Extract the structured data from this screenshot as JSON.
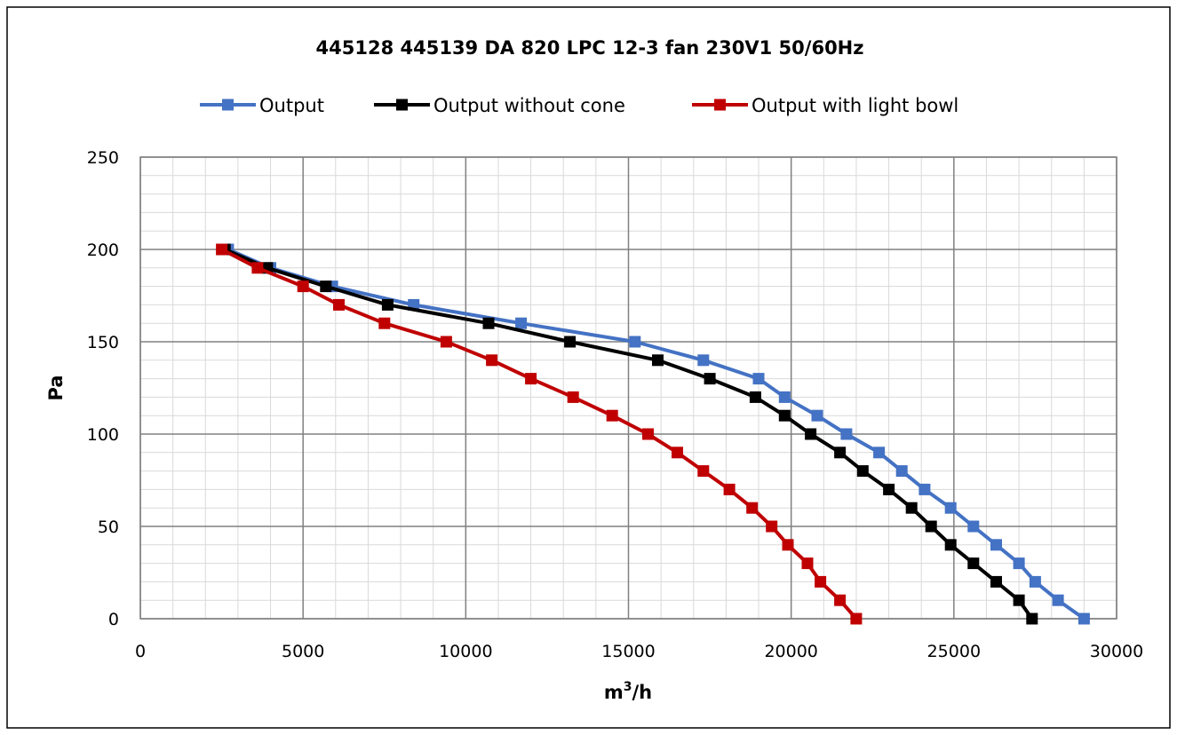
{
  "chart_data": {
    "type": "line",
    "title": "445128  445139 DA 820 LPC 12-3 fan 230V1 50/60Hz",
    "xlabel_base": "m",
    "xlabel_sup": "3",
    "xlabel_tail": "/h",
    "ylabel": "Pa",
    "xlim": [
      0,
      30000
    ],
    "ylim": [
      0,
      250
    ],
    "x_ticks": [
      "0",
      "5000",
      "10000",
      "15000",
      "20000",
      "25000",
      "30000"
    ],
    "y_ticks": [
      "0",
      "50",
      "100",
      "150",
      "200",
      "250"
    ],
    "x_major_step": 5000,
    "x_minor_step": 1000,
    "y_major_step": 50,
    "y_minor_step": 10,
    "grid": true,
    "legend_position": "top",
    "series": [
      {
        "name": "Output",
        "color": "#4472C4",
        "points": [
          [
            2700,
            200
          ],
          [
            4000,
            190
          ],
          [
            5900,
            180
          ],
          [
            8400,
            170
          ],
          [
            11700,
            160
          ],
          [
            15200,
            150
          ],
          [
            17300,
            140
          ],
          [
            19000,
            130
          ],
          [
            19800,
            120
          ],
          [
            20800,
            110
          ],
          [
            21700,
            100
          ],
          [
            22700,
            90
          ],
          [
            23400,
            80
          ],
          [
            24100,
            70
          ],
          [
            24900,
            60
          ],
          [
            25600,
            50
          ],
          [
            26300,
            40
          ],
          [
            27000,
            30
          ],
          [
            27500,
            20
          ],
          [
            28200,
            10
          ],
          [
            29000,
            0
          ]
        ]
      },
      {
        "name": "Output without cone",
        "color": "#000000",
        "points": [
          [
            2600,
            200
          ],
          [
            3900,
            190
          ],
          [
            5700,
            180
          ],
          [
            7600,
            170
          ],
          [
            10700,
            160
          ],
          [
            13200,
            150
          ],
          [
            15900,
            140
          ],
          [
            17500,
            130
          ],
          [
            18900,
            120
          ],
          [
            19800,
            110
          ],
          [
            20600,
            100
          ],
          [
            21500,
            90
          ],
          [
            22200,
            80
          ],
          [
            23000,
            70
          ],
          [
            23700,
            60
          ],
          [
            24300,
            50
          ],
          [
            24900,
            40
          ],
          [
            25600,
            30
          ],
          [
            26300,
            20
          ],
          [
            27000,
            10
          ],
          [
            27400,
            0
          ]
        ]
      },
      {
        "name": "Output with light bowl",
        "color": "#C00000",
        "points": [
          [
            2500,
            200
          ],
          [
            3600,
            190
          ],
          [
            5000,
            180
          ],
          [
            6100,
            170
          ],
          [
            7500,
            160
          ],
          [
            9400,
            150
          ],
          [
            10800,
            140
          ],
          [
            12000,
            130
          ],
          [
            13300,
            120
          ],
          [
            14500,
            110
          ],
          [
            15600,
            100
          ],
          [
            16500,
            90
          ],
          [
            17300,
            80
          ],
          [
            18100,
            70
          ],
          [
            18800,
            60
          ],
          [
            19400,
            50
          ],
          [
            19900,
            40
          ],
          [
            20500,
            30
          ],
          [
            20900,
            20
          ],
          [
            21500,
            10
          ],
          [
            22000,
            0
          ]
        ]
      }
    ]
  }
}
